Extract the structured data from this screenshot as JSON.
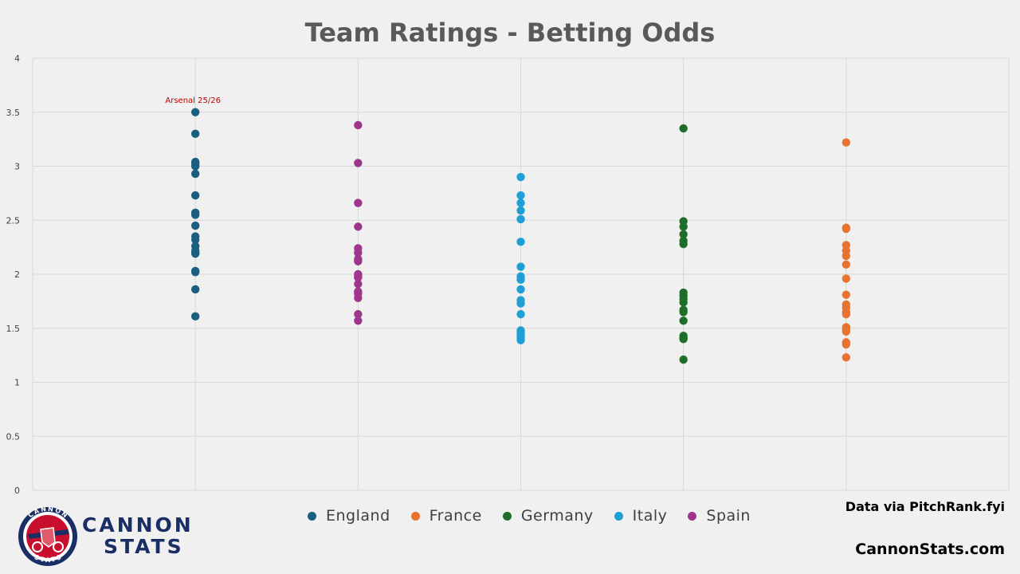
{
  "title": "Team Ratings - Betting Odds",
  "source_note": "Data via PitchRank.fyi",
  "site": "CannonStats.com",
  "brand": {
    "line1": "CANNON",
    "line2": "STATS",
    "badge_top": "CANNON",
    "badge_bottom": "STATS"
  },
  "colors": {
    "England": "#1a5f80",
    "France": "#e87330",
    "Germany": "#1e6e2a",
    "Italy": "#1e9fd6",
    "Spain": "#a0358f",
    "annotation": "#c00000",
    "grid": "#d9d9d9",
    "axis_text": "#404040",
    "title": "#595959"
  },
  "legend": [
    {
      "name": "England",
      "color": "#1a5f80"
    },
    {
      "name": "France",
      "color": "#e87330"
    },
    {
      "name": "Germany",
      "color": "#1e6e2a"
    },
    {
      "name": "Italy",
      "color": "#1e9fd6"
    },
    {
      "name": "Spain",
      "color": "#a0358f"
    }
  ],
  "chart_data": {
    "type": "scatter",
    "title": "Team Ratings - Betting Odds",
    "xlim": [
      0,
      6
    ],
    "ylim": [
      0,
      4
    ],
    "yticks": [
      0,
      0.5,
      1,
      1.5,
      2,
      2.5,
      3,
      3.5,
      4
    ],
    "grid": true,
    "legend_position": "bottom",
    "series": [
      {
        "name": "England",
        "x": 1,
        "values": [
          3.5,
          3.3,
          3.04,
          3.02,
          3.0,
          2.93,
          2.73,
          2.57,
          2.55,
          2.45,
          2.35,
          2.32,
          2.26,
          2.22,
          2.2,
          2.19,
          2.03,
          2.02,
          1.86,
          1.61
        ]
      },
      {
        "name": "Spain",
        "x": 2,
        "values": [
          3.38,
          3.03,
          2.66,
          2.44,
          2.24,
          2.2,
          2.14,
          2.12,
          2.0,
          1.98,
          1.97,
          1.91,
          1.84,
          1.82,
          1.78,
          1.63,
          1.57
        ]
      },
      {
        "name": "Italy",
        "x": 3,
        "values": [
          2.9,
          2.73,
          2.66,
          2.59,
          2.51,
          2.3,
          2.07,
          1.98,
          1.95,
          1.86,
          1.76,
          1.73,
          1.63,
          1.48,
          1.46,
          1.44,
          1.42,
          1.41,
          1.39
        ]
      },
      {
        "name": "Germany",
        "x": 4,
        "values": [
          3.35,
          2.49,
          2.44,
          2.37,
          2.31,
          2.28,
          1.83,
          1.8,
          1.77,
          1.74,
          1.67,
          1.65,
          1.57,
          1.43,
          1.41,
          1.4,
          1.21
        ]
      },
      {
        "name": "France",
        "x": 5,
        "values": [
          3.22,
          2.43,
          2.42,
          2.27,
          2.22,
          2.17,
          2.09,
          1.96,
          1.81,
          1.72,
          1.69,
          1.65,
          1.63,
          1.51,
          1.49,
          1.47,
          1.37,
          1.35,
          1.23
        ]
      }
    ],
    "annotations": [
      {
        "text": "Arsenal 25/26",
        "series": "England",
        "x": 1,
        "y": 3.5
      }
    ]
  }
}
